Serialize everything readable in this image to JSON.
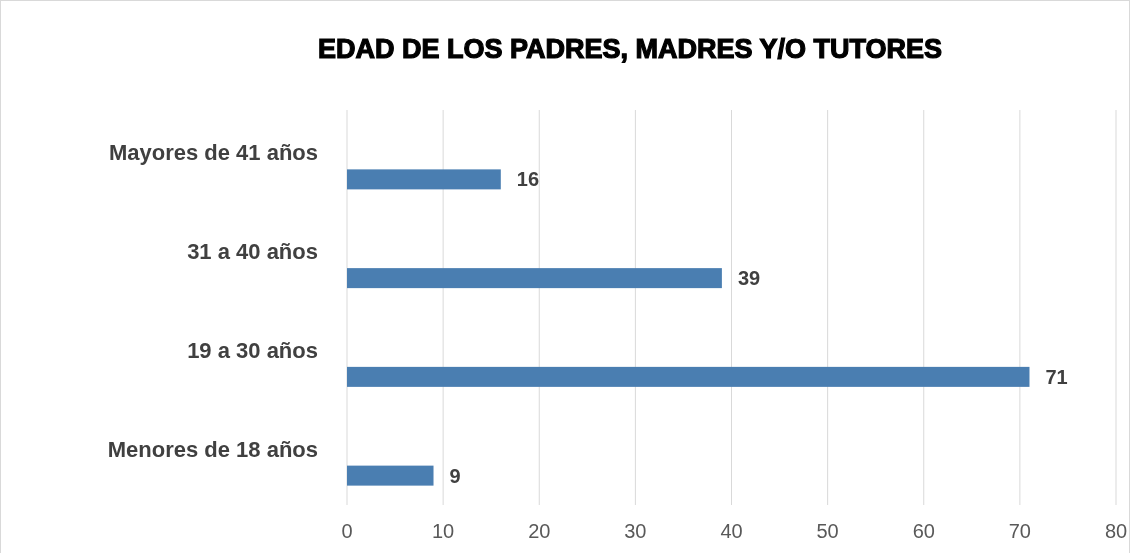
{
  "chart_data": {
    "type": "bar",
    "orientation": "horizontal",
    "title": "EDAD DE LOS PADRES, MADRES Y/O TUTORES",
    "categories": [
      "Mayores de 41 años",
      "31 a 40 años",
      "19 a 30 años",
      "Menores de 18 años"
    ],
    "values": [
      16,
      39,
      71,
      9
    ],
    "color": "#4a7eb1",
    "xlim": [
      0,
      80
    ],
    "xticks": [
      0,
      10,
      20,
      30,
      40,
      50,
      60,
      70,
      80
    ],
    "grid": "x",
    "data_labels": true
  }
}
